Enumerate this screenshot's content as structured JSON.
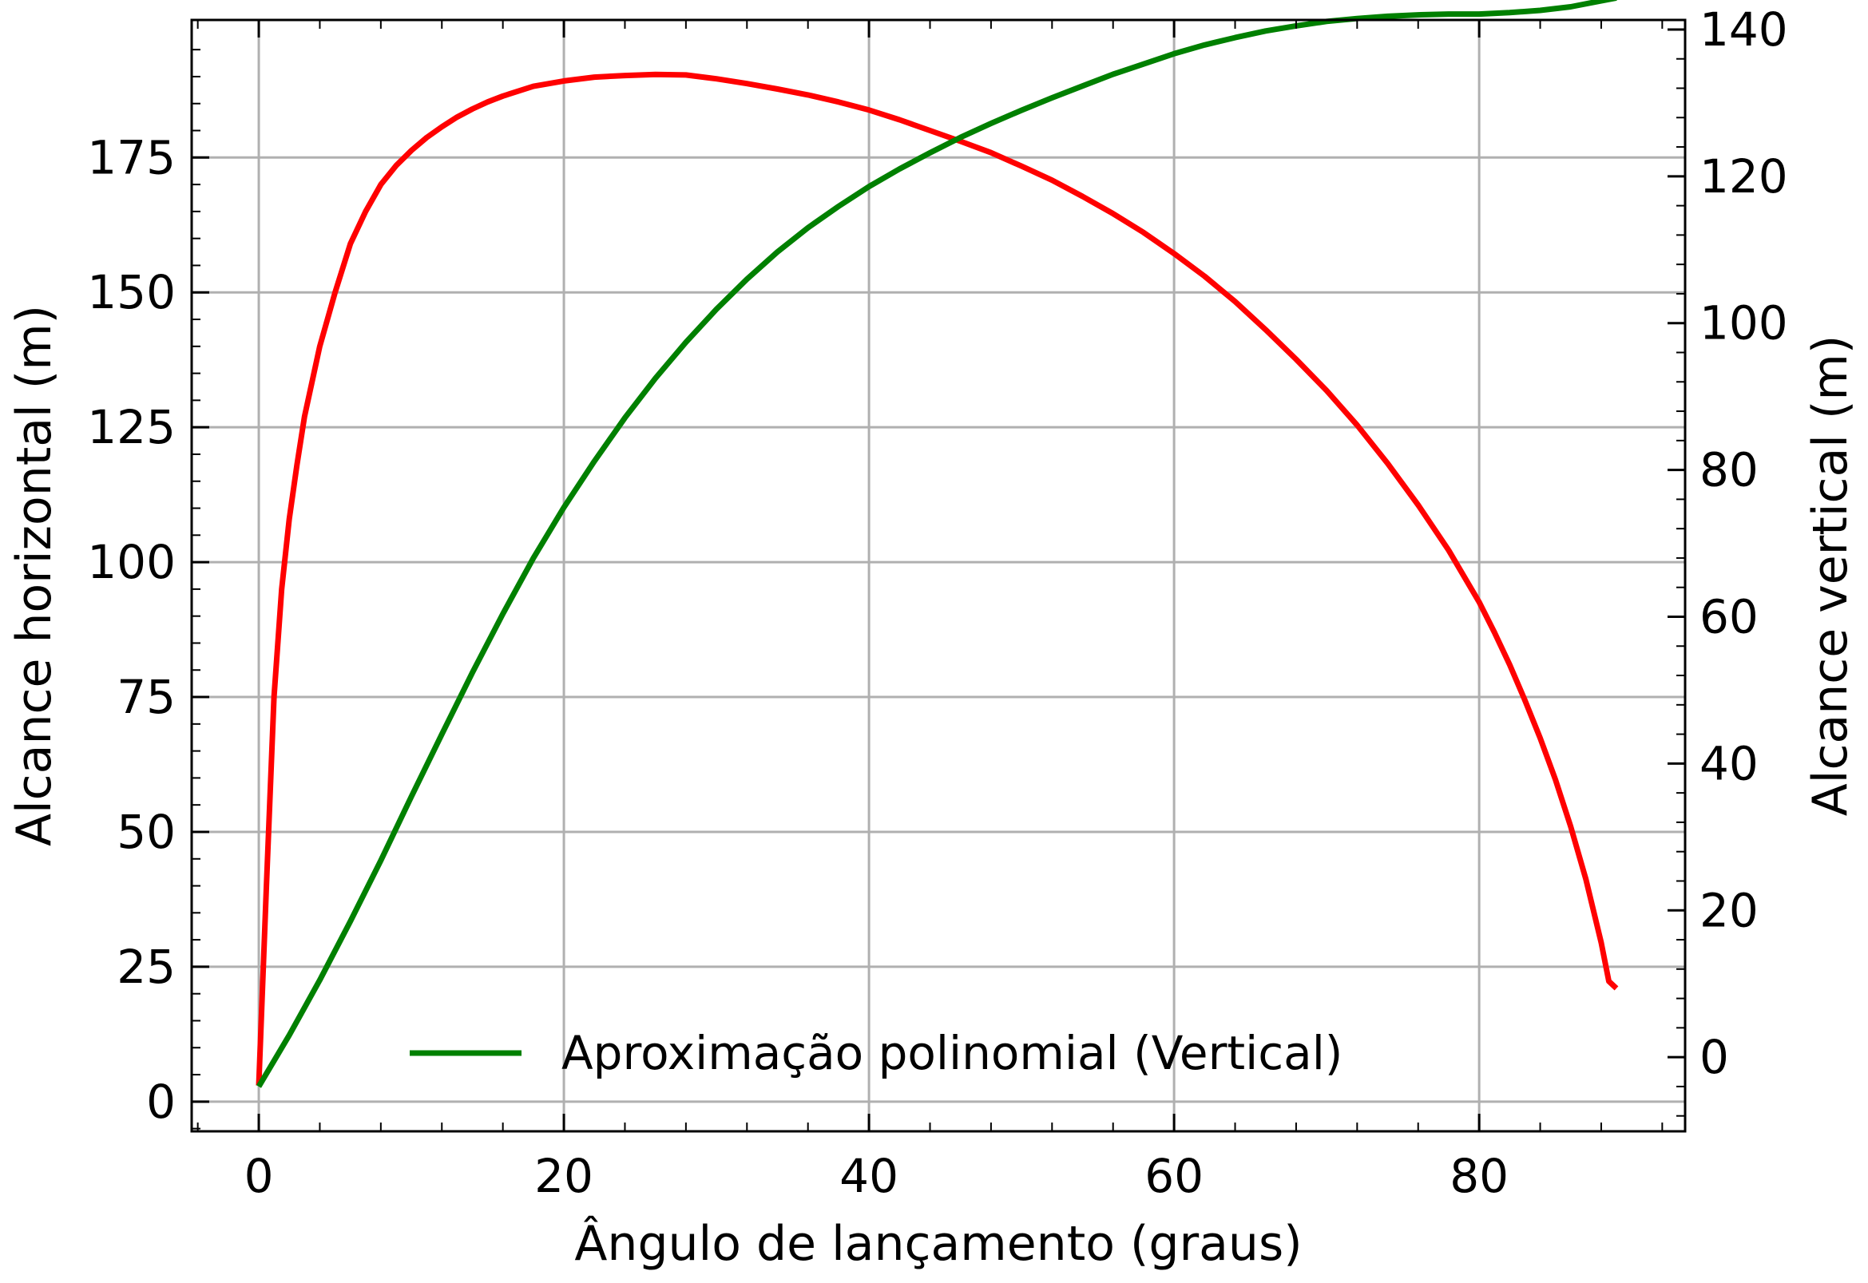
{
  "chart_data": {
    "type": "line",
    "title": "",
    "xlabel": "Ângulo de lançamento (graus)",
    "ylabel": "Alcance horizontal (m)",
    "y2label": "Alcance vertical (m)",
    "xlim": [
      -4.4,
      93.5
    ],
    "ylim": [
      -5.5,
      200.5
    ],
    "y2lim": [
      -10.1,
      141.3
    ],
    "x_ticks": [
      0,
      20,
      40,
      60,
      80
    ],
    "x_tick_labels": [
      "0",
      "20",
      "40",
      "60",
      "80"
    ],
    "y_ticks": [
      0,
      25,
      50,
      75,
      100,
      125,
      150,
      175
    ],
    "y_tick_labels": [
      "0",
      "25",
      "50",
      "75",
      "100",
      "125",
      "150",
      "175"
    ],
    "y2_ticks": [
      0,
      20,
      40,
      60,
      80,
      100,
      120,
      140
    ],
    "y2_tick_labels": [
      "0",
      "20",
      "40",
      "60",
      "80",
      "100",
      "120",
      "140"
    ],
    "grid": true,
    "legend_position": "bottom-center",
    "legend": [
      {
        "label": "Aproximação polinomial (Vertical)",
        "color": "#008000"
      }
    ],
    "series": [
      {
        "axis": "left",
        "color": "#ff0000",
        "x": [
          0,
          0.5,
          1,
          1.5,
          2,
          2.5,
          3,
          4,
          5,
          6,
          7,
          8,
          9,
          10,
          11,
          12,
          13,
          14,
          15,
          16,
          18,
          20,
          22,
          24,
          26,
          28,
          30,
          32,
          34,
          36,
          38,
          40,
          42,
          44,
          46,
          48,
          50,
          52,
          54,
          56,
          58,
          60,
          62,
          64,
          66,
          68,
          70,
          72,
          74,
          76,
          78,
          80,
          81,
          82,
          83,
          84,
          85,
          86,
          87,
          88,
          88.5,
          89
        ],
        "y": [
          3,
          40,
          75,
          95,
          108,
          118,
          127,
          140,
          150,
          159,
          165,
          170,
          173.5,
          176.3,
          178.7,
          180.7,
          182.5,
          184,
          185.3,
          186.4,
          188.2,
          189.2,
          189.9,
          190.2,
          190.4,
          190.3,
          189.6,
          188.7,
          187.7,
          186.6,
          185.3,
          183.8,
          182,
          180,
          178,
          175.9,
          173.4,
          170.8,
          167.8,
          164.6,
          161.1,
          157.2,
          153,
          148.3,
          143.1,
          137.6,
          131.8,
          125.4,
          118.3,
          110.6,
          102.2,
          92.6,
          87,
          81,
          74.4,
          67.4,
          59.7,
          51,
          41.2,
          29.5,
          22.3,
          21
        ]
      },
      {
        "name": "Aproximação polinomial (Vertical)",
        "axis": "right",
        "color": "#008000",
        "x": [
          0,
          2,
          4,
          6,
          8,
          10,
          12,
          14,
          16,
          18,
          20,
          22,
          24,
          26,
          28,
          30,
          32,
          34,
          36,
          38,
          40,
          42,
          44,
          46,
          48,
          50,
          52,
          54,
          56,
          58,
          60,
          62,
          64,
          66,
          68,
          70,
          72,
          74,
          76,
          78,
          80,
          82,
          84,
          86,
          88,
          89
        ],
        "y": [
          -4,
          3,
          10.5,
          18.5,
          26.8,
          35.5,
          44,
          52.4,
          60.4,
          68,
          74.9,
          81.2,
          87.1,
          92.5,
          97.4,
          101.9,
          106,
          109.7,
          113,
          115.9,
          118.6,
          121,
          123.2,
          125.3,
          127.2,
          129,
          130.7,
          132.3,
          133.9,
          135.3,
          136.7,
          137.9,
          138.9,
          139.8,
          140.5,
          141.1,
          141.5,
          141.8,
          142,
          142.1,
          142.1,
          142.3,
          142.6,
          143.1,
          143.9,
          144.3
        ]
      }
    ]
  }
}
